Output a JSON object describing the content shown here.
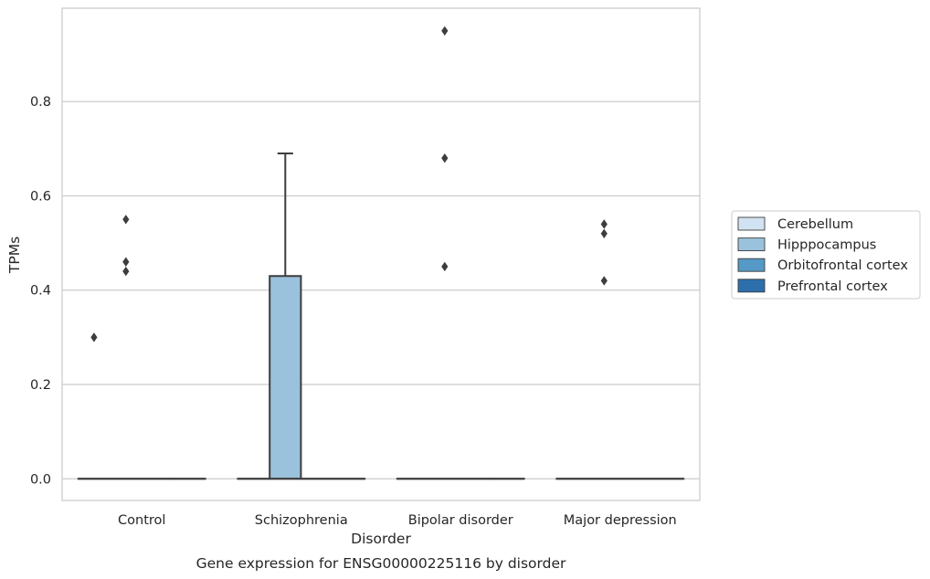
{
  "chart_data": {
    "type": "box",
    "title": "Gene expression for ENSG00000225116 by disorder",
    "xlabel": "Disorder",
    "ylabel": "TPMs",
    "ylim": [
      -0.046,
      0.998
    ],
    "yticks": [
      0.0,
      0.2,
      0.4,
      0.6,
      0.8
    ],
    "ytick_labels": [
      "0.0",
      "0.2",
      "0.4",
      "0.6",
      "0.8"
    ],
    "grid": "horizontal",
    "legend_position": "right",
    "categories": [
      "Control",
      "Schizophrenia",
      "Bipolar disorder",
      "Major depression"
    ],
    "series": [
      {
        "name": "Cerebellum",
        "color": "#d1e2f2",
        "boxes": [
          {
            "category": "Control",
            "q1": 0.0,
            "median": 0.0,
            "q3": 0.0,
            "whisker_low": 0.0,
            "whisker_high": 0.0,
            "outliers": [
              0.3
            ]
          },
          {
            "category": "Schizophrenia",
            "q1": 0.0,
            "median": 0.0,
            "q3": 0.0,
            "whisker_low": 0.0,
            "whisker_high": 0.0,
            "outliers": []
          },
          {
            "category": "Bipolar disorder",
            "q1": 0.0,
            "median": 0.0,
            "q3": 0.0,
            "whisker_low": 0.0,
            "whisker_high": 0.0,
            "outliers": []
          },
          {
            "category": "Major depression",
            "q1": 0.0,
            "median": 0.0,
            "q3": 0.0,
            "whisker_low": 0.0,
            "whisker_high": 0.0,
            "outliers": []
          }
        ]
      },
      {
        "name": "Hipppocampus",
        "color": "#9ac2dc",
        "boxes": [
          {
            "category": "Control",
            "q1": 0.0,
            "median": 0.0,
            "q3": 0.0,
            "whisker_low": 0.0,
            "whisker_high": 0.0,
            "outliers": [
              0.55,
              0.46,
              0.44
            ]
          },
          {
            "category": "Schizophrenia",
            "q1": 0.0,
            "median": 0.0,
            "q3": 0.43,
            "whisker_low": 0.0,
            "whisker_high": 0.69,
            "outliers": []
          },
          {
            "category": "Bipolar disorder",
            "q1": 0.0,
            "median": 0.0,
            "q3": 0.0,
            "whisker_low": 0.0,
            "whisker_high": 0.0,
            "outliers": [
              0.95,
              0.68,
              0.45
            ]
          },
          {
            "category": "Major depression",
            "q1": 0.0,
            "median": 0.0,
            "q3": 0.0,
            "whisker_low": 0.0,
            "whisker_high": 0.0,
            "outliers": [
              0.54,
              0.52,
              0.42
            ]
          }
        ]
      },
      {
        "name": "Orbitofrontal cortex",
        "color": "#5599c6",
        "boxes": [
          {
            "category": "Control",
            "q1": 0.0,
            "median": 0.0,
            "q3": 0.0,
            "whisker_low": 0.0,
            "whisker_high": 0.0,
            "outliers": []
          },
          {
            "category": "Schizophrenia",
            "q1": 0.0,
            "median": 0.0,
            "q3": 0.0,
            "whisker_low": 0.0,
            "whisker_high": 0.0,
            "outliers": []
          },
          {
            "category": "Bipolar disorder",
            "q1": 0.0,
            "median": 0.0,
            "q3": 0.0,
            "whisker_low": 0.0,
            "whisker_high": 0.0,
            "outliers": []
          },
          {
            "category": "Major depression",
            "q1": 0.0,
            "median": 0.0,
            "q3": 0.0,
            "whisker_low": 0.0,
            "whisker_high": 0.0,
            "outliers": []
          }
        ]
      },
      {
        "name": "Prefrontal cortex",
        "color": "#2d6fac",
        "boxes": [
          {
            "category": "Control",
            "q1": 0.0,
            "median": 0.0,
            "q3": 0.0,
            "whisker_low": 0.0,
            "whisker_high": 0.0,
            "outliers": []
          },
          {
            "category": "Schizophrenia",
            "q1": 0.0,
            "median": 0.0,
            "q3": 0.0,
            "whisker_low": 0.0,
            "whisker_high": 0.0,
            "outliers": []
          },
          {
            "category": "Bipolar disorder",
            "q1": 0.0,
            "median": 0.0,
            "q3": 0.0,
            "whisker_low": 0.0,
            "whisker_high": 0.0,
            "outliers": []
          },
          {
            "category": "Major depression",
            "q1": 0.0,
            "median": 0.0,
            "q3": 0.0,
            "whisker_low": 0.0,
            "whisker_high": 0.0,
            "outliers": []
          }
        ]
      }
    ]
  },
  "colors": {
    "grid": "#cccccc",
    "frame": "#cccccc",
    "stroke": "#3d3d3d",
    "text": "#262626"
  }
}
